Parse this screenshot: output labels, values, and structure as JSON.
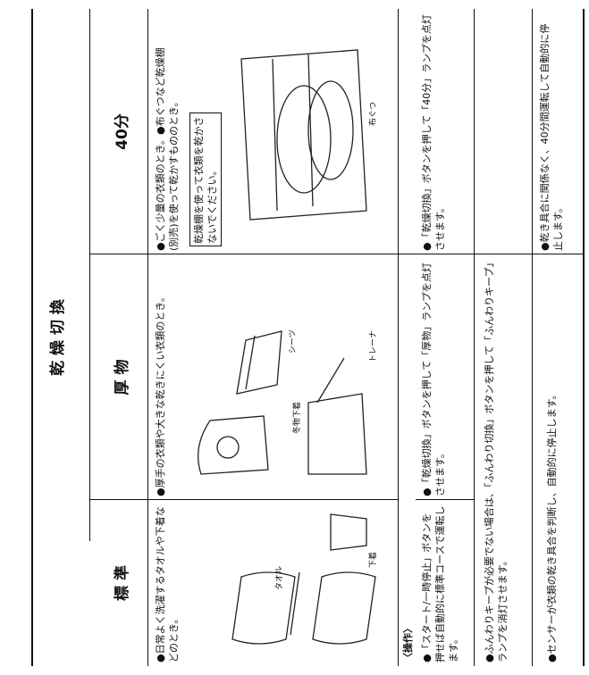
{
  "header": {
    "title": "乾 燥 切 換"
  },
  "columns": [
    {
      "name": "標 準",
      "description": "●日常よく洗濯するタオルや下着などのとき。",
      "captions": [
        "タオル",
        "下着"
      ],
      "operation": "●「スタート/一時停止」ボタンを押せば自動的に標準コースで運転します。"
    },
    {
      "name": "厚 物",
      "description": "●厚手の衣類や大きな乾きにくい衣類のとき。",
      "captions": [
        "冬物下着",
        "シーツ",
        "トレーナ"
      ],
      "operation": "●「乾燥切換」ボタンを押して「厚物」ランプを点灯させます。"
    },
    {
      "name": "40分",
      "description": "●ごく少量の衣類のとき。●布ぐつなど乾燥棚(別売)を使って乾かすもののとき。",
      "note": "乾燥棚を使って衣類を乾かさないでください。",
      "captions": [
        "布ぐつ"
      ],
      "operation": "●「乾燥切換」ボタンを押して「40分」ランプを点灯させます。"
    }
  ],
  "operations": {
    "heading": "〈操作〉",
    "keep": "●ふんわりキープが必要でない場合は、「ふんわり切換」ボタンを押して「ふんわりキープ」ランプを消灯させます。",
    "sensor": "●センサーが衣類の乾き具合を判断し、自動的に停止します。",
    "timer": "●乾き具合に関係なく、40分間運転して自動的に停止します。"
  }
}
